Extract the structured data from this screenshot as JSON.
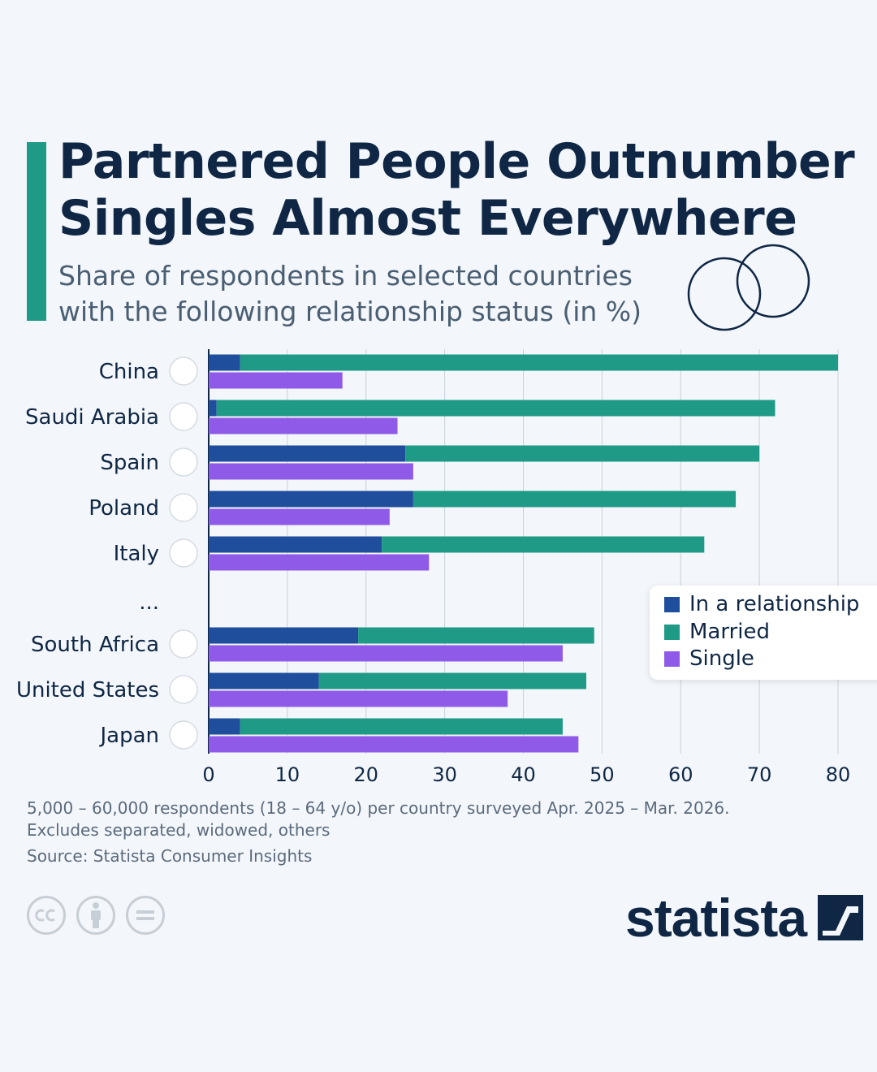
{
  "header": {
    "title_line1": "Partnered People Outnumber",
    "title_line2": "Singles Almost Everywhere",
    "subtitle_line1": "Share of respondents in selected countries",
    "subtitle_line2": "with the following relationship status (in %)"
  },
  "colors": {
    "accent": "#1f9a86",
    "in_a_relationship": "#1f4e9c",
    "married": "#1f9a86",
    "single": "#8f5ae8",
    "text": "#0f2744",
    "grid": "#c9d1da"
  },
  "icons": [
    "rings-icon",
    "cc-icon",
    "attribution-icon",
    "no-derivatives-icon",
    "statista-logo-icon"
  ],
  "chart_data": {
    "type": "bar",
    "orientation": "horizontal",
    "stacked_series": [
      "In a relationship",
      "Married"
    ],
    "categories": [
      "China",
      "Saudi Arabia",
      "Spain",
      "Poland",
      "Italy",
      "...",
      "South Africa",
      "United States",
      "Japan"
    ],
    "series": [
      {
        "name": "In a relationship",
        "values": [
          4,
          1,
          25,
          26,
          22,
          null,
          19,
          14,
          4
        ]
      },
      {
        "name": "Married",
        "values": [
          76,
          71,
          45,
          41,
          41,
          null,
          30,
          34,
          41
        ]
      },
      {
        "name": "Single",
        "values": [
          17,
          24,
          26,
          23,
          28,
          null,
          45,
          38,
          47
        ]
      }
    ],
    "x_ticks": [
      "0",
      "10",
      "20",
      "30",
      "40",
      "50",
      "60",
      "70",
      "80"
    ],
    "xlim": [
      0,
      80
    ],
    "grid": true,
    "legend_position": "right"
  },
  "legend": {
    "items": [
      {
        "label": "In a relationship"
      },
      {
        "label": "Married"
      },
      {
        "label": "Single"
      }
    ]
  },
  "footer": {
    "note_line1": "5,000 – 60,000 respondents (18 – 64 y/o) per country surveyed Apr. 2025 – Mar. 2026.",
    "note_line2": "Excludes separated, widowed, others",
    "source": "Source: Statista Consumer Insights",
    "brand": "statista"
  }
}
